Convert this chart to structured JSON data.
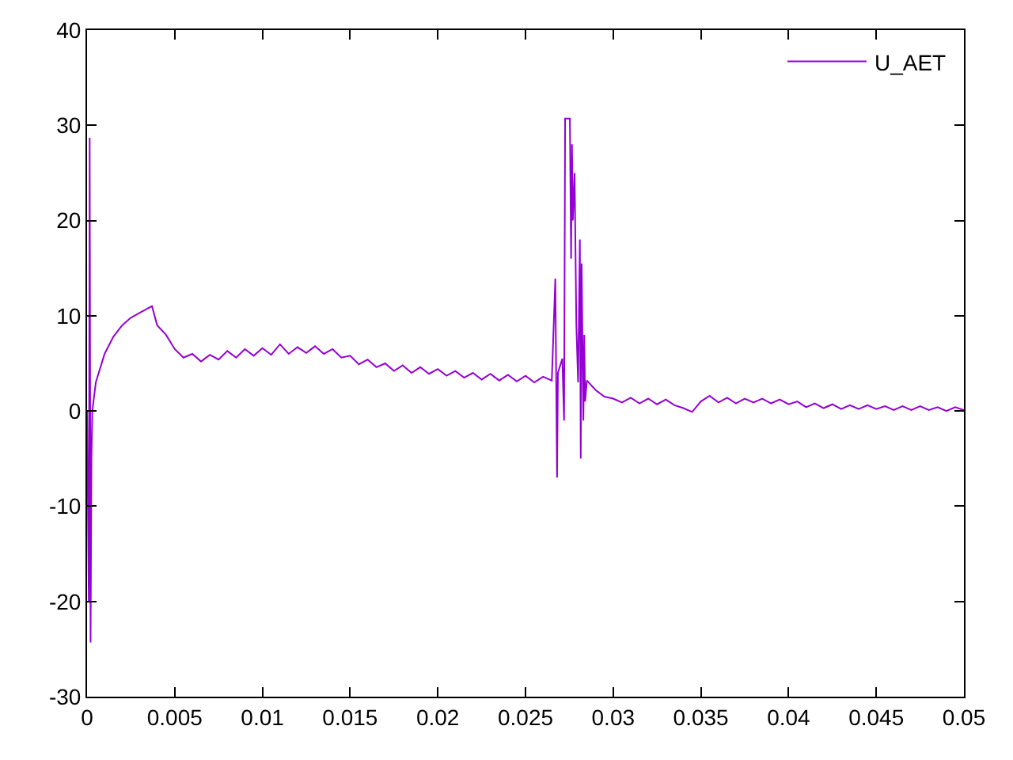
{
  "chart_data": {
    "type": "line",
    "legend": "top right",
    "marker": "none",
    "line_style": "solid",
    "xlim": [
      0,
      0.05
    ],
    "xticks": [
      0,
      0.005,
      0.01,
      0.015,
      0.02,
      0.025,
      0.03,
      0.035,
      0.04,
      0.045,
      0.05
    ],
    "ylim": [
      -30,
      40
    ],
    "yticks": [
      -30,
      -20,
      -10,
      0,
      10,
      20,
      30,
      40
    ],
    "series": [
      {
        "name": "U_AET",
        "color": "#9400d3",
        "x": [
          0,
          0.0001,
          0.00015,
          0.0002,
          0.00025,
          0.0003,
          0.0005,
          0.001,
          0.0015,
          0.002,
          0.0025,
          0.003,
          0.0035,
          0.0037,
          0.004,
          0.0045,
          0.005,
          0.0055,
          0.006,
          0.0065,
          0.007,
          0.0075,
          0.008,
          0.0085,
          0.009,
          0.0095,
          0.01,
          0.0105,
          0.011,
          0.0115,
          0.012,
          0.0125,
          0.013,
          0.0135,
          0.014,
          0.0145,
          0.015,
          0.0155,
          0.016,
          0.0165,
          0.017,
          0.0175,
          0.018,
          0.0185,
          0.019,
          0.0195,
          0.02,
          0.0205,
          0.021,
          0.0215,
          0.022,
          0.0225,
          0.023,
          0.0235,
          0.024,
          0.0245,
          0.025,
          0.0255,
          0.026,
          0.0265,
          0.0267,
          0.0268,
          0.02685,
          0.0271,
          0.0272,
          0.02726,
          0.02753,
          0.0276,
          0.02765,
          0.0277,
          0.0278,
          0.0279,
          0.028,
          0.0281,
          0.02815,
          0.0282,
          0.0283,
          0.02835,
          0.0284,
          0.0285,
          0.029,
          0.0295,
          0.03,
          0.0305,
          0.031,
          0.0315,
          0.032,
          0.0325,
          0.033,
          0.0335,
          0.034,
          0.0345,
          0.035,
          0.0355,
          0.036,
          0.0365,
          0.037,
          0.0375,
          0.038,
          0.0385,
          0.039,
          0.0395,
          0.04,
          0.0405,
          0.041,
          0.0415,
          0.042,
          0.0425,
          0.043,
          0.0435,
          0.044,
          0.0445,
          0.045,
          0.0455,
          0.046,
          0.0465,
          0.047,
          0.0475,
          0.048,
          0.0485,
          0.049,
          0.0495,
          0.05
        ],
        "values": [
          0,
          -20,
          28.7,
          -24.3,
          -5,
          0,
          3,
          6,
          7.8,
          9,
          9.8,
          10.3,
          10.8,
          11,
          9,
          8,
          6.5,
          5.6,
          6.0,
          5.2,
          5.9,
          5.4,
          6.3,
          5.6,
          6.5,
          5.8,
          6.6,
          5.9,
          7.0,
          6.0,
          6.7,
          6.1,
          6.8,
          6.0,
          6.5,
          5.6,
          5.8,
          4.9,
          5.4,
          4.6,
          5.0,
          4.2,
          4.8,
          4.0,
          4.6,
          3.9,
          4.4,
          3.7,
          4.2,
          3.5,
          4.0,
          3.3,
          3.9,
          3.2,
          3.8,
          3.1,
          3.7,
          3.0,
          3.6,
          3.2,
          13.9,
          -7,
          4,
          5.5,
          -1,
          30.7,
          30.7,
          16,
          28,
          20,
          25,
          9,
          3,
          18,
          -5,
          15.5,
          -1,
          8,
          1,
          3.2,
          2.2,
          1.5,
          1.3,
          0.9,
          1.4,
          0.8,
          1.3,
          0.7,
          1.2,
          0.6,
          0.3,
          -0.1,
          1.0,
          1.6,
          0.9,
          1.4,
          0.8,
          1.3,
          0.9,
          1.3,
          0.8,
          1.2,
          0.7,
          1.0,
          0.4,
          0.8,
          0.3,
          0.7,
          0.2,
          0.6,
          0.2,
          0.6,
          0.2,
          0.5,
          0.1,
          0.5,
          0.1,
          0.5,
          0.1,
          0.4,
          0.0,
          0.4,
          0.1
        ]
      }
    ]
  }
}
